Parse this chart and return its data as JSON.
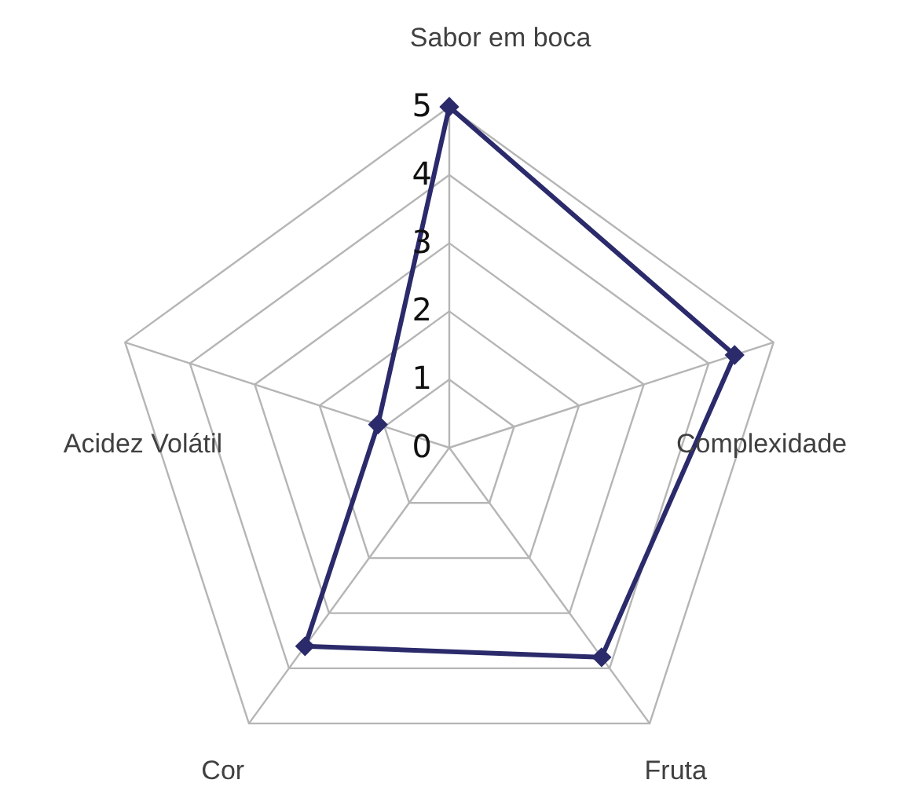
{
  "chart_data": {
    "type": "radar",
    "categories": [
      "Sabor em boca",
      "Complexidade",
      "Fruta",
      "Cor",
      "Acidez Volátil"
    ],
    "series": [
      {
        "color": "#2b2a6b",
        "values": [
          5,
          4.4,
          3.8,
          3.6,
          1.1
        ]
      }
    ],
    "ylim": [
      0,
      5
    ],
    "yticks": [
      0,
      1,
      2,
      3,
      4,
      5
    ],
    "grid": true,
    "marker": "diamond"
  }
}
